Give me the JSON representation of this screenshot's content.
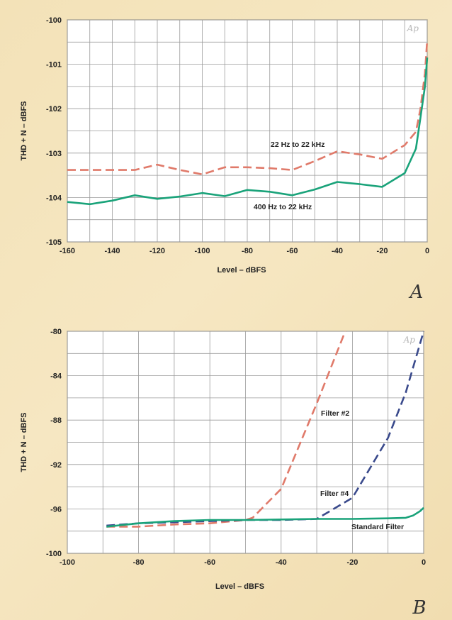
{
  "colors": {
    "red_series": "#e07a6a",
    "blue_series": "#3a4a8c",
    "green_series": "#1aa37a",
    "grid": "#9a9a9a",
    "plot_bg": "#ffffff"
  },
  "chart_data": [
    {
      "type": "line",
      "panel_label": "A",
      "watermark": "Ap",
      "xlabel": "Level – dBFS",
      "ylabel": "THD + N – dBFS",
      "xlim": [
        -160,
        0
      ],
      "ylim": [
        -105,
        -100
      ],
      "y_inverted": true,
      "xticks": [
        -160,
        -140,
        -120,
        -100,
        -80,
        -60,
        -40,
        -20,
        0
      ],
      "yticks": [
        -100,
        -101,
        -102,
        -103,
        -104,
        -105
      ],
      "grid": true,
      "series": [
        {
          "name": "22 Hz to 22 kHz",
          "style": "dashed",
          "color": "#e07a6a",
          "x": [
            -160,
            -150,
            -140,
            -130,
            -120,
            -110,
            -100,
            -90,
            -80,
            -70,
            -60,
            -50,
            -40,
            -30,
            -20,
            -10,
            -5,
            -3,
            -1,
            0
          ],
          "y": [
            -103.38,
            -103.38,
            -103.38,
            -103.38,
            -103.26,
            -103.38,
            -103.48,
            -103.32,
            -103.32,
            -103.34,
            -103.38,
            -103.18,
            -102.96,
            -103.03,
            -103.13,
            -102.82,
            -102.52,
            -102.0,
            -101.2,
            -100.45
          ]
        },
        {
          "name": "400 Hz to 22 kHz",
          "style": "solid",
          "color": "#1aa37a",
          "x": [
            -160,
            -150,
            -140,
            -130,
            -120,
            -110,
            -100,
            -90,
            -80,
            -70,
            -60,
            -50,
            -40,
            -30,
            -20,
            -10,
            -5,
            -3,
            -1,
            0
          ],
          "y": [
            -104.1,
            -104.15,
            -104.07,
            -103.95,
            -104.03,
            -103.98,
            -103.9,
            -103.97,
            -103.83,
            -103.87,
            -103.95,
            -103.82,
            -103.65,
            -103.7,
            -103.76,
            -103.45,
            -102.9,
            -102.2,
            -101.5,
            -100.85
          ]
        }
      ]
    },
    {
      "type": "line",
      "panel_label": "B",
      "watermark": "Ap",
      "xlabel": "Level – dBFS",
      "ylabel": "THD + N – dBFS",
      "xlim": [
        -100,
        0
      ],
      "ylim": [
        -100,
        -80
      ],
      "y_inverted": true,
      "xticks": [
        -100,
        -80,
        -60,
        -40,
        -20,
        0
      ],
      "yticks": [
        -80,
        -84,
        -88,
        -92,
        -96,
        -100
      ],
      "grid": true,
      "series": [
        {
          "name": "Filter #2",
          "style": "dashed",
          "color": "#e07a6a",
          "x": [
            -89,
            -80,
            -70,
            -60,
            -50,
            -48,
            -40,
            -30,
            -22
          ],
          "y": [
            -97.6,
            -97.6,
            -97.4,
            -97.3,
            -97.0,
            -96.8,
            -94.2,
            -86.5,
            -80.0
          ]
        },
        {
          "name": "Filter #4",
          "style": "dashed",
          "color": "#3a4a8c",
          "x": [
            -89,
            -80,
            -70,
            -60,
            -50,
            -40,
            -30,
            -20,
            -10,
            -5,
            0
          ],
          "y": [
            -97.5,
            -97.3,
            -97.2,
            -97.1,
            -97.0,
            -97.0,
            -96.9,
            -95.0,
            -89.6,
            -85.5,
            -80.0
          ]
        },
        {
          "name": "Standard Filter",
          "style": "solid",
          "color": "#1aa37a",
          "x": [
            -89,
            -80,
            -70,
            -60,
            -50,
            -40,
            -30,
            -20,
            -10,
            -5,
            -3,
            -1,
            0
          ],
          "y": [
            -97.6,
            -97.3,
            -97.1,
            -97.0,
            -97.0,
            -96.95,
            -96.9,
            -96.9,
            -96.85,
            -96.8,
            -96.6,
            -96.2,
            -95.9
          ]
        }
      ]
    }
  ]
}
